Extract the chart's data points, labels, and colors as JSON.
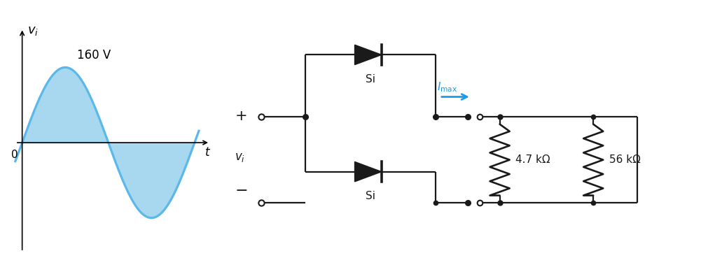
{
  "bg_color": "#ffffff",
  "sine_color": "#5bb8e8",
  "sine_fill_color": "#a8d8f0",
  "arrow_color": "#1e9be8",
  "circuit_color": "#1a1a1a",
  "text_color": "#2a2a2a",
  "label_160V": "160 V",
  "label_t": "t",
  "label_0": "0",
  "label_R1": "4.7 kΩ",
  "label_R2": "56 kΩ",
  "label_plus": "+",
  "label_minus": "−",
  "label_vi_circuit": "v_i",
  "label_Si": "Si"
}
